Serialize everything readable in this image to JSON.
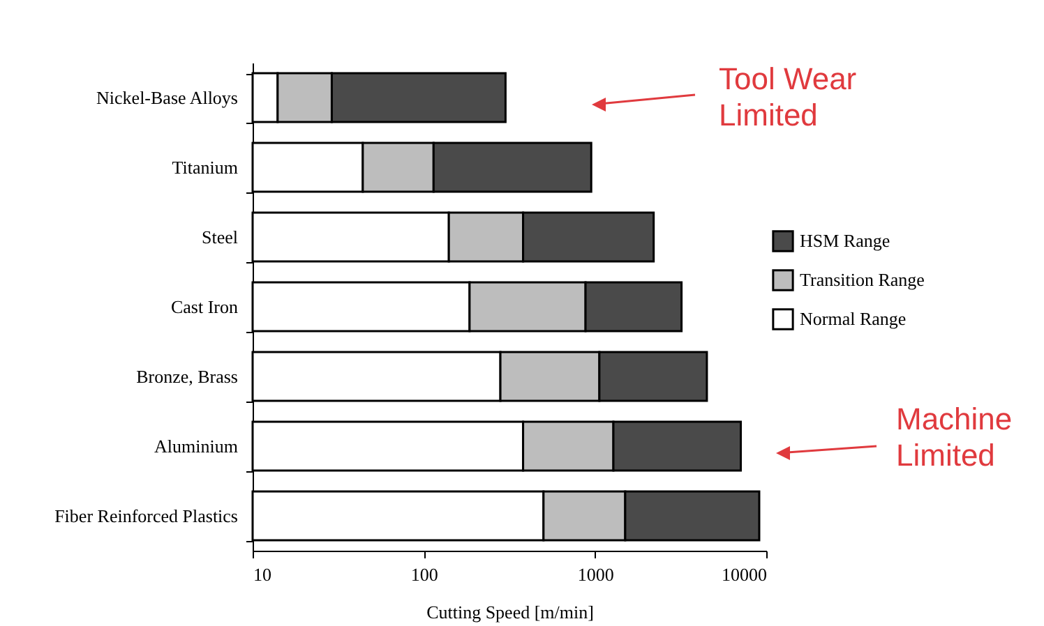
{
  "chart_data": {
    "type": "bar",
    "orientation": "horizontal",
    "stacked": true,
    "log": "x",
    "categories": [
      "Nickel-Base Alloys",
      "Titanium",
      "Steel",
      "Cast Iron",
      "Bronze, Brass",
      "Aluminium",
      "Fiber Reinforced Plastics"
    ],
    "series": [
      {
        "name": "Normal Range",
        "color": "#ffffff",
        "values": [
          14,
          44,
          140,
          185,
          280,
          380,
          500
        ]
      },
      {
        "name": "Transition Range",
        "color": "#bdbdbd",
        "values": [
          15,
          70,
          240,
          695,
          780,
          900,
          1000
        ]
      },
      {
        "name": "HSM Range",
        "color": "#4a4a4a",
        "values": [
          271,
          836,
          1820,
          2320,
          3440,
          5820,
          7600
        ]
      }
    ],
    "xlim": [
      10,
      10000
    ],
    "xticks": [
      10,
      100,
      1000,
      10000
    ],
    "xlabel": "Cutting Speed [m/min]",
    "legend": "right",
    "annotations": [
      "Tool Wear Limited",
      "Machine Limited"
    ]
  }
}
